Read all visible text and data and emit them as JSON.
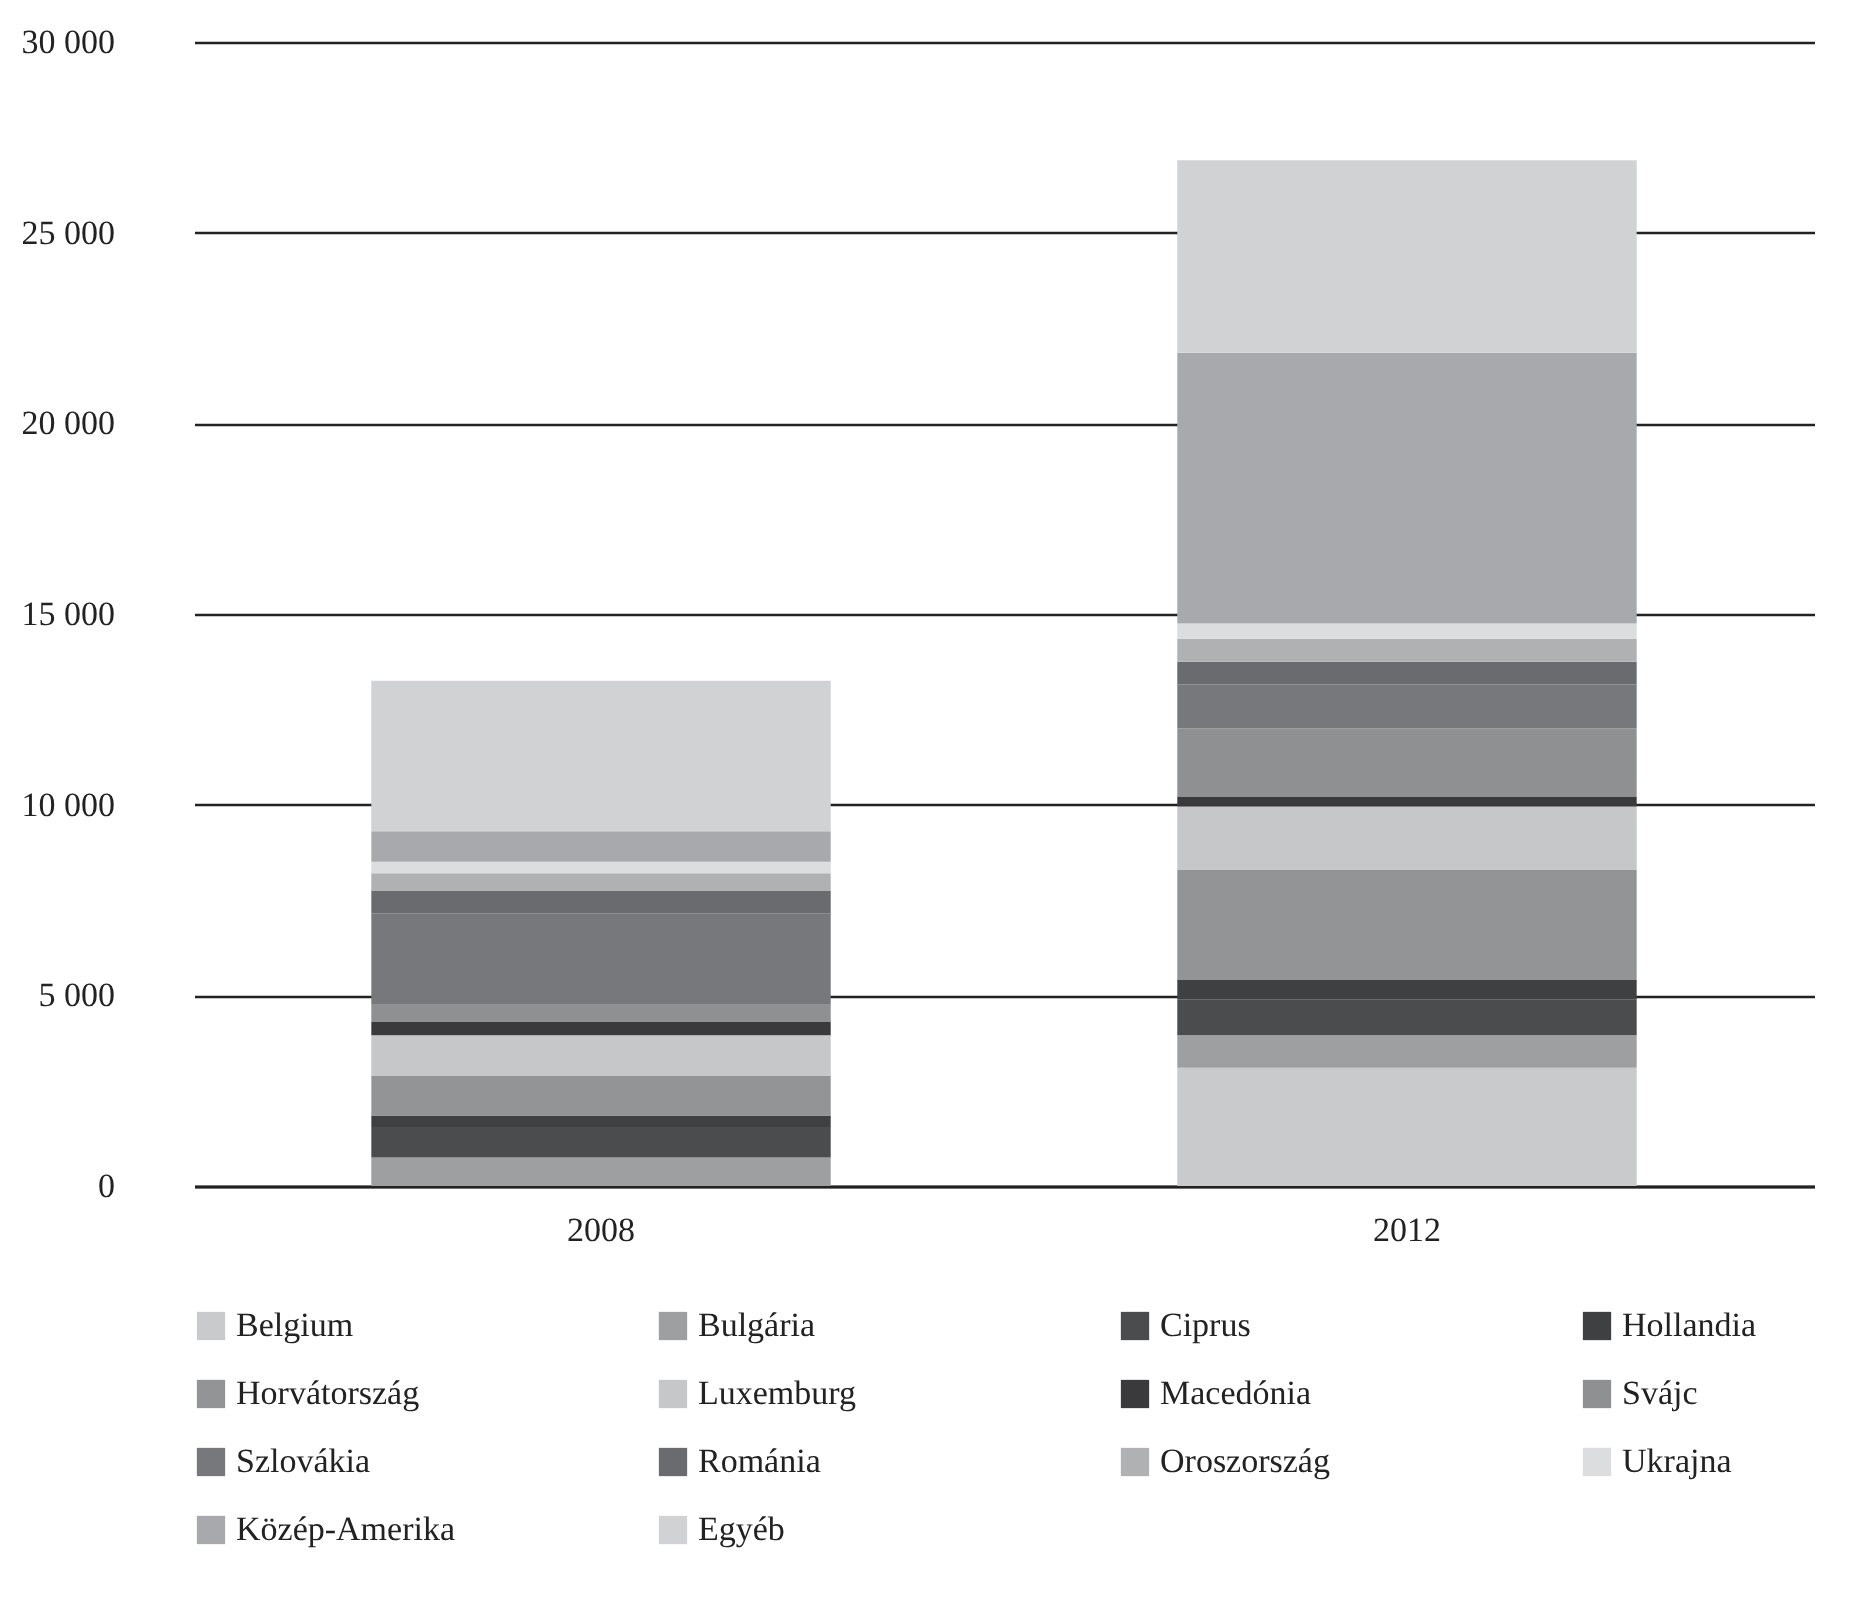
{
  "chart_data": {
    "type": "bar",
    "stacked": true,
    "categories": [
      "2008",
      "2012"
    ],
    "series": [
      {
        "name": "Belgium",
        "color": "#c9cacc",
        "values": [
          0,
          3100
        ]
      },
      {
        "name": "Bulgária",
        "color": "#9e9fa1",
        "values": [
          750,
          850
        ]
      },
      {
        "name": "Ciprus",
        "color": "#4b4c4e",
        "values": [
          800,
          950
        ]
      },
      {
        "name": "Hollandia",
        "color": "#3f4042",
        "values": [
          300,
          500
        ]
      },
      {
        "name": "Horvátország",
        "color": "#939496",
        "values": [
          1050,
          2900
        ]
      },
      {
        "name": "Luxemburg",
        "color": "#c6c7c9",
        "values": [
          1050,
          1650
        ]
      },
      {
        "name": "Macedónia",
        "color": "#3a3a3c",
        "values": [
          350,
          250
        ]
      },
      {
        "name": "Svájc",
        "color": "#8f9092",
        "values": [
          450,
          1800
        ]
      },
      {
        "name": "Szlovákia",
        "color": "#77787b",
        "values": [
          2400,
          1150
        ]
      },
      {
        "name": "Románia",
        "color": "#6a6b6e",
        "values": [
          600,
          600
        ]
      },
      {
        "name": "Oroszország",
        "color": "#b0b1b3",
        "values": [
          450,
          600
        ]
      },
      {
        "name": "Ukrajna",
        "color": "#dcdddf",
        "values": [
          300,
          400
        ]
      },
      {
        "name": "Közép-Amerika",
        "color": "#a8a9ac",
        "values": [
          800,
          7100
        ]
      },
      {
        "name": "Egyéb",
        "color": "#d1d2d4",
        "values": [
          3950,
          5050
        ]
      }
    ],
    "ylim": [
      0,
      30000
    ],
    "yticks": [
      {
        "value": 0,
        "label": "0"
      },
      {
        "value": 5000,
        "label": "5 000"
      },
      {
        "value": 10000,
        "label": "10 000"
      },
      {
        "value": 15000,
        "label": "15 000"
      },
      {
        "value": 20000,
        "label": "20 000"
      },
      {
        "value": 25000,
        "label": "25 000"
      },
      {
        "value": 30000,
        "label": "30 000"
      }
    ],
    "grid": "y",
    "legend": "bottom"
  }
}
